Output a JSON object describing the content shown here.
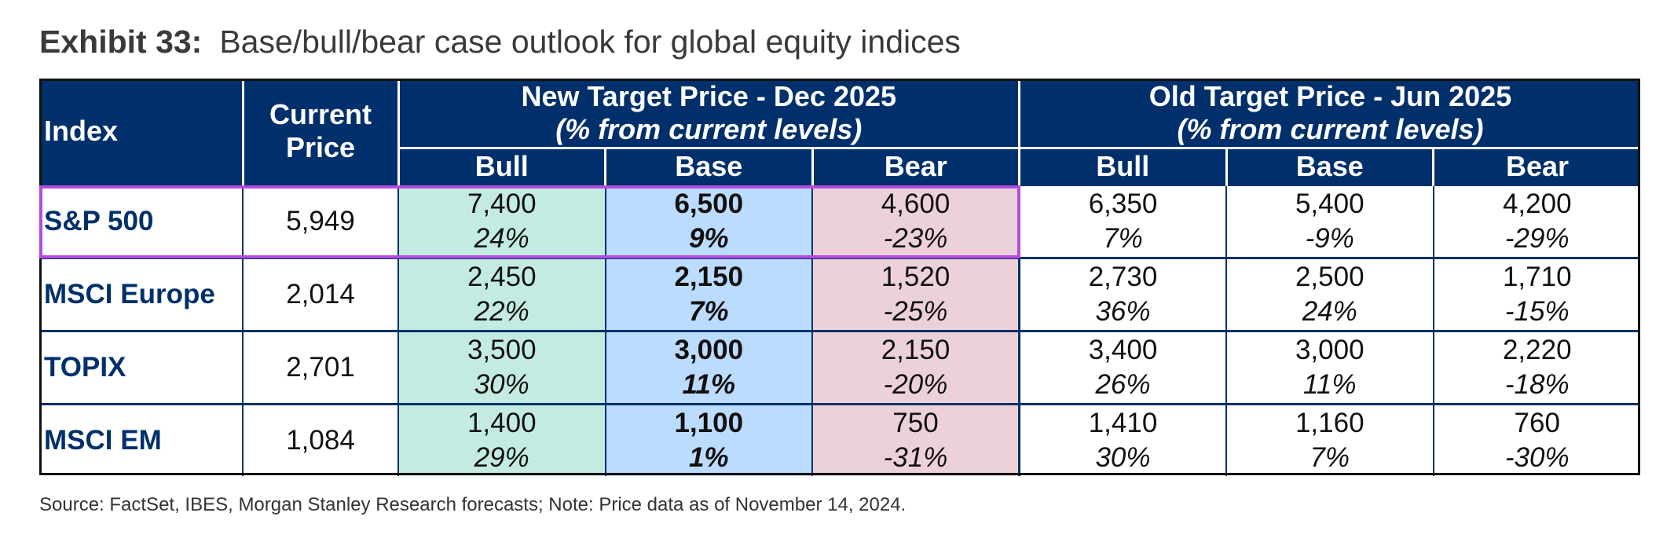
{
  "exhibit": {
    "number": "Exhibit 33:",
    "title": "Base/bull/bear case outlook for global equity indices"
  },
  "table": {
    "headers": {
      "index": "Index",
      "current_price": "Current Price",
      "new_group_title": "New Target Price - Dec 2025",
      "new_group_subtitle": "(% from current levels)",
      "old_group_title": "Old Target Price - Jun 2025",
      "old_group_subtitle": "(% from current levels)",
      "bull": "Bull",
      "base": "Base",
      "bear": "Bear"
    },
    "rows": [
      {
        "index": "S&P 500",
        "current": "5,949",
        "new": {
          "bull": {
            "price": "7,400",
            "pct": "24%"
          },
          "base": {
            "price": "6,500",
            "pct": "9%"
          },
          "bear": {
            "price": "4,600",
            "pct": "-23%"
          }
        },
        "old": {
          "bull": {
            "price": "6,350",
            "pct": "7%"
          },
          "base": {
            "price": "5,400",
            "pct": "-9%"
          },
          "bear": {
            "price": "4,200",
            "pct": "-29%"
          }
        }
      },
      {
        "index": "MSCI Europe",
        "current": "2,014",
        "new": {
          "bull": {
            "price": "2,450",
            "pct": "22%"
          },
          "base": {
            "price": "2,150",
            "pct": "7%"
          },
          "bear": {
            "price": "1,520",
            "pct": "-25%"
          }
        },
        "old": {
          "bull": {
            "price": "2,730",
            "pct": "36%"
          },
          "base": {
            "price": "2,500",
            "pct": "24%"
          },
          "bear": {
            "price": "1,710",
            "pct": "-15%"
          }
        }
      },
      {
        "index": "TOPIX",
        "current": "2,701",
        "new": {
          "bull": {
            "price": "3,500",
            "pct": "30%"
          },
          "base": {
            "price": "3,000",
            "pct": "11%"
          },
          "bear": {
            "price": "2,150",
            "pct": "-20%"
          }
        },
        "old": {
          "bull": {
            "price": "3,400",
            "pct": "26%"
          },
          "base": {
            "price": "3,000",
            "pct": "11%"
          },
          "bear": {
            "price": "2,220",
            "pct": "-18%"
          }
        }
      },
      {
        "index": "MSCI EM",
        "current": "1,084",
        "new": {
          "bull": {
            "price": "1,400",
            "pct": "29%"
          },
          "base": {
            "price": "1,100",
            "pct": "1%"
          },
          "bear": {
            "price": "750",
            "pct": "-31%"
          }
        },
        "old": {
          "bull": {
            "price": "1,410",
            "pct": "30%"
          },
          "base": {
            "price": "1,160",
            "pct": "7%"
          },
          "bear": {
            "price": "760",
            "pct": "-30%"
          }
        }
      }
    ]
  },
  "colors": {
    "header_bg": "#00306b",
    "bull_bg": "#c3ebe1",
    "base_bg": "#bcdcff",
    "bear_bg": "#edd1d8",
    "highlight_border": "#b44be1"
  },
  "source_note": "Source: FactSet, IBES, Morgan Stanley Research forecasts; Note: Price data as of November 14, 2024."
}
